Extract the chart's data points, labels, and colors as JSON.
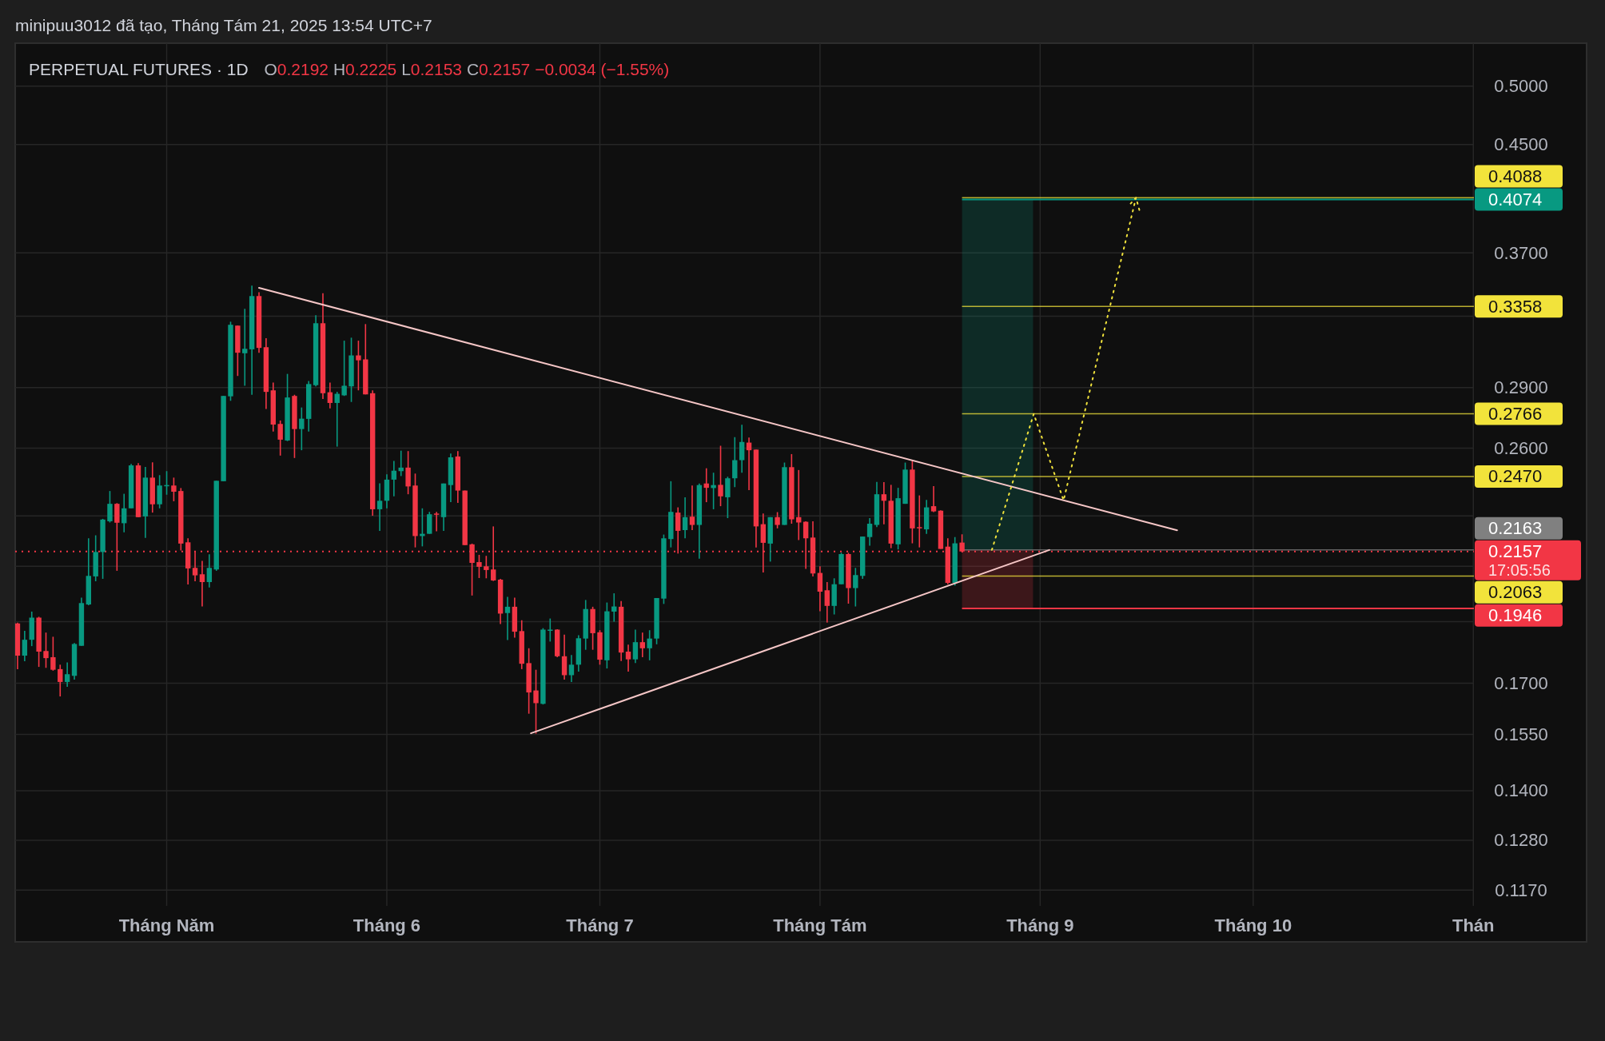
{
  "chart_data": {
    "type": "candlestick",
    "title": "PERPETUAL FUTURES · 1D",
    "subtitle": "O0.2192 H0.2225 L0.2153 C0.2157 −0.0034 (−1.55%)",
    "annotations": [
      "minipuu3012 đã tạo, Tháng Tám 21, 2025 13:54 UTC+7",
      "17:05:56"
    ],
    "log": "y",
    "grid": true,
    "xlim": [
      "2025-04-09T16:00",
      "2025-11-01T02:00"
    ],
    "xticks": [
      {
        "value": "2025-05-01",
        "label": "Tháng Năm"
      },
      {
        "value": "2025-06-01",
        "label": "Tháng 6"
      },
      {
        "value": "2025-07-01",
        "label": "Tháng 7"
      },
      {
        "value": "2025-08-01",
        "label": "Tháng Tám"
      },
      {
        "value": "2025-09-01",
        "label": "Tháng 9"
      },
      {
        "value": "2025-10-01",
        "label": "Tháng 10"
      },
      {
        "value": "2025-11-01",
        "label": "Thán"
      }
    ],
    "ylim": [
      0.1137,
      0.5404
    ],
    "yticks": [
      {
        "value": 0.5,
        "label": "0.5000"
      },
      {
        "value": 0.45,
        "label": "0.4500"
      },
      {
        "value": 0.37,
        "label": "0.3700"
      },
      {
        "value": 0.33,
        "label": null
      },
      {
        "value": 0.29,
        "label": "0.2900"
      },
      {
        "value": 0.26,
        "label": "0.2600"
      },
      {
        "value": 0.23,
        "label": null
      },
      {
        "value": 0.21,
        "label": null
      },
      {
        "value": 0.19,
        "label": null
      },
      {
        "value": 0.17,
        "label": "0.1700"
      },
      {
        "value": 0.155,
        "label": "0.1550"
      },
      {
        "value": 0.14,
        "label": "0.1400"
      },
      {
        "value": 0.128,
        "label": "0.1280"
      },
      {
        "value": 0.117,
        "label": "0.1170"
      }
    ],
    "x": [
      "2025-04-10",
      "2025-04-11",
      "2025-04-12",
      "2025-04-13",
      "2025-04-14",
      "2025-04-15",
      "2025-04-16",
      "2025-04-17",
      "2025-04-18",
      "2025-04-19",
      "2025-04-20",
      "2025-04-21",
      "2025-04-22",
      "2025-04-23",
      "2025-04-24",
      "2025-04-25",
      "2025-04-26",
      "2025-04-27",
      "2025-04-28",
      "2025-04-29",
      "2025-04-30",
      "2025-05-01",
      "2025-05-02",
      "2025-05-03",
      "2025-05-04",
      "2025-05-05",
      "2025-05-06",
      "2025-05-07",
      "2025-05-08",
      "2025-05-09",
      "2025-05-10",
      "2025-05-11",
      "2025-05-12",
      "2025-05-13",
      "2025-05-14",
      "2025-05-15",
      "2025-05-16",
      "2025-05-17",
      "2025-05-18",
      "2025-05-19",
      "2025-05-20",
      "2025-05-21",
      "2025-05-22",
      "2025-05-23",
      "2025-05-24",
      "2025-05-25",
      "2025-05-26",
      "2025-05-27",
      "2025-05-28",
      "2025-05-29",
      "2025-05-30",
      "2025-05-31",
      "2025-06-01",
      "2025-06-02",
      "2025-06-03",
      "2025-06-04",
      "2025-06-05",
      "2025-06-06",
      "2025-06-07",
      "2025-06-08",
      "2025-06-09",
      "2025-06-10",
      "2025-06-11",
      "2025-06-12",
      "2025-06-13",
      "2025-06-14",
      "2025-06-15",
      "2025-06-16",
      "2025-06-17",
      "2025-06-18",
      "2025-06-19",
      "2025-06-20",
      "2025-06-21",
      "2025-06-22",
      "2025-06-23",
      "2025-06-24",
      "2025-06-25",
      "2025-06-26",
      "2025-06-27",
      "2025-06-28",
      "2025-06-29",
      "2025-06-30",
      "2025-07-01",
      "2025-07-02",
      "2025-07-03",
      "2025-07-04",
      "2025-07-05",
      "2025-07-06",
      "2025-07-07",
      "2025-07-08",
      "2025-07-09",
      "2025-07-10",
      "2025-07-11",
      "2025-07-12",
      "2025-07-13",
      "2025-07-14",
      "2025-07-15",
      "2025-07-16",
      "2025-07-17",
      "2025-07-18",
      "2025-07-19",
      "2025-07-20",
      "2025-07-21",
      "2025-07-22",
      "2025-07-23",
      "2025-07-24",
      "2025-07-25",
      "2025-07-26",
      "2025-07-27",
      "2025-07-28",
      "2025-07-29",
      "2025-07-30",
      "2025-07-31",
      "2025-08-01",
      "2025-08-02",
      "2025-08-03",
      "2025-08-04",
      "2025-08-05",
      "2025-08-06",
      "2025-08-07",
      "2025-08-08",
      "2025-08-09",
      "2025-08-10",
      "2025-08-11",
      "2025-08-12",
      "2025-08-13",
      "2025-08-14",
      "2025-08-15",
      "2025-08-16",
      "2025-08-17",
      "2025-08-18",
      "2025-08-19",
      "2025-08-20",
      "2025-08-21"
    ],
    "ohlc": [
      [
        0.1894,
        0.1897,
        0.1744,
        0.1787
      ],
      [
        0.1787,
        0.1869,
        0.1769,
        0.1839
      ],
      [
        0.1839,
        0.1935,
        0.1818,
        0.1914
      ],
      [
        0.1914,
        0.1917,
        0.1751,
        0.18
      ],
      [
        0.1802,
        0.1863,
        0.1748,
        0.1779
      ],
      [
        0.1782,
        0.1849,
        0.1739,
        0.1742
      ],
      [
        0.1744,
        0.1758,
        0.166,
        0.1704
      ],
      [
        0.1704,
        0.1765,
        0.1689,
        0.1728
      ],
      [
        0.1723,
        0.1828,
        0.1711,
        0.1825
      ],
      [
        0.1819,
        0.1984,
        0.1819,
        0.1965
      ],
      [
        0.196,
        0.2209,
        0.1957,
        0.2064
      ],
      [
        0.2062,
        0.2221,
        0.2044,
        0.2155
      ],
      [
        0.2155,
        0.2288,
        0.2053,
        0.2285
      ],
      [
        0.2278,
        0.2406,
        0.2273,
        0.2351
      ],
      [
        0.2351,
        0.2354,
        0.2083,
        0.2272
      ],
      [
        0.227,
        0.2394,
        0.2233,
        0.2332
      ],
      [
        0.2332,
        0.2527,
        0.2332,
        0.252
      ],
      [
        0.252,
        0.253,
        0.2295,
        0.2295
      ],
      [
        0.2298,
        0.2513,
        0.2211,
        0.2465
      ],
      [
        0.2465,
        0.2534,
        0.2314,
        0.2349
      ],
      [
        0.2349,
        0.2476,
        0.2332,
        0.243
      ],
      [
        0.243,
        0.2494,
        0.239,
        0.2432
      ],
      [
        0.243,
        0.2465,
        0.2362,
        0.2403
      ],
      [
        0.2406,
        0.2419,
        0.2161,
        0.2188
      ],
      [
        0.2193,
        0.2209,
        0.2032,
        0.2092
      ],
      [
        0.2094,
        0.2158,
        0.2044,
        0.2066
      ],
      [
        0.207,
        0.2121,
        0.1953,
        0.2041
      ],
      [
        0.2041,
        0.2146,
        0.2021,
        0.2094
      ],
      [
        0.2088,
        0.2451,
        0.2083,
        0.2451
      ],
      [
        0.2449,
        0.2857,
        0.2449,
        0.2857
      ],
      [
        0.2855,
        0.3267,
        0.2832,
        0.3249
      ],
      [
        0.3244,
        0.3244,
        0.2962,
        0.3089
      ],
      [
        0.3086,
        0.3344,
        0.291,
        0.3111
      ],
      [
        0.3108,
        0.3487,
        0.2863,
        0.3422
      ],
      [
        0.3422,
        0.3446,
        0.3089,
        0.3116
      ],
      [
        0.312,
        0.3171,
        0.2791,
        0.2878
      ],
      [
        0.2886,
        0.2927,
        0.2679,
        0.2713
      ],
      [
        0.2716,
        0.2733,
        0.2565,
        0.264
      ],
      [
        0.2636,
        0.2973,
        0.2633,
        0.2849
      ],
      [
        0.2857,
        0.2863,
        0.2554,
        0.2691
      ],
      [
        0.2691,
        0.2798,
        0.259,
        0.2742
      ],
      [
        0.2741,
        0.2935,
        0.2679,
        0.2919
      ],
      [
        0.2913,
        0.3306,
        0.2907,
        0.3258
      ],
      [
        0.3258,
        0.344,
        0.2841,
        0.2871
      ],
      [
        0.2876,
        0.2927,
        0.2794,
        0.2821
      ],
      [
        0.2821,
        0.2878,
        0.2607,
        0.2868
      ],
      [
        0.286,
        0.3157,
        0.2857,
        0.291
      ],
      [
        0.2907,
        0.3174,
        0.2826,
        0.3074
      ],
      [
        0.3074,
        0.3157,
        0.2886,
        0.3047
      ],
      [
        0.3052,
        0.3253,
        0.2865,
        0.2865
      ],
      [
        0.2871,
        0.2886,
        0.2301,
        0.2328
      ],
      [
        0.2328,
        0.244,
        0.2239,
        0.2364
      ],
      [
        0.2364,
        0.248,
        0.2332,
        0.2456
      ],
      [
        0.2456,
        0.254,
        0.2383,
        0.2496
      ],
      [
        0.2494,
        0.2588,
        0.2472,
        0.251
      ],
      [
        0.251,
        0.2586,
        0.2392,
        0.2426
      ],
      [
        0.243,
        0.2483,
        0.2173,
        0.2218
      ],
      [
        0.2218,
        0.2332,
        0.2177,
        0.2227
      ],
      [
        0.2227,
        0.2317,
        0.2227,
        0.2307
      ],
      [
        0.231,
        0.2317,
        0.2237,
        0.2306
      ],
      [
        0.2295,
        0.2439,
        0.2239,
        0.2439
      ],
      [
        0.2432,
        0.2575,
        0.2358,
        0.2557
      ],
      [
        0.2561,
        0.2586,
        0.2355,
        0.2408
      ],
      [
        0.2408,
        0.2408,
        0.2182,
        0.2182
      ],
      [
        0.2185,
        0.2188,
        0.1992,
        0.2113
      ],
      [
        0.2116,
        0.2144,
        0.2056,
        0.2098
      ],
      [
        0.21,
        0.214,
        0.2055,
        0.2086
      ],
      [
        0.2088,
        0.2257,
        0.2045,
        0.2047
      ],
      [
        0.205,
        0.2053,
        0.1892,
        0.1928
      ],
      [
        0.193,
        0.1987,
        0.1838,
        0.1952
      ],
      [
        0.1952,
        0.1984,
        0.1846,
        0.1866
      ],
      [
        0.1868,
        0.1905,
        0.1744,
        0.1761
      ],
      [
        0.1763,
        0.1811,
        0.1609,
        0.1672
      ],
      [
        0.1678,
        0.1742,
        0.1552,
        0.164
      ],
      [
        0.1638,
        0.1878,
        0.1636,
        0.1873
      ],
      [
        0.1871,
        0.1911,
        0.1833,
        0.1873
      ],
      [
        0.1873,
        0.1874,
        0.1782,
        0.1785
      ],
      [
        0.1785,
        0.1856,
        0.1711,
        0.1725
      ],
      [
        0.1725,
        0.1789,
        0.1704,
        0.1758
      ],
      [
        0.1758,
        0.1854,
        0.1736,
        0.1844
      ],
      [
        0.1843,
        0.1976,
        0.1806,
        0.1944
      ],
      [
        0.1944,
        0.1952,
        0.1806,
        0.1861
      ],
      [
        0.1864,
        0.1871,
        0.1758,
        0.1774
      ],
      [
        0.1772,
        0.1967,
        0.1746,
        0.1936
      ],
      [
        0.1935,
        0.2,
        0.19,
        0.1953
      ],
      [
        0.1952,
        0.1972,
        0.177,
        0.1797
      ],
      [
        0.18,
        0.1823,
        0.1736,
        0.1775
      ],
      [
        0.1775,
        0.1873,
        0.1763,
        0.1831
      ],
      [
        0.1831,
        0.1863,
        0.1782,
        0.1811
      ],
      [
        0.1811,
        0.1871,
        0.1772,
        0.1843
      ],
      [
        0.1843,
        0.1983,
        0.1824,
        0.1983
      ],
      [
        0.1981,
        0.2224,
        0.1962,
        0.2209
      ],
      [
        0.2206,
        0.2449,
        0.2173,
        0.2317
      ],
      [
        0.2314,
        0.2336,
        0.2149,
        0.2239
      ],
      [
        0.2242,
        0.2379,
        0.2209,
        0.2295
      ],
      [
        0.2297,
        0.243,
        0.2242,
        0.2263
      ],
      [
        0.2263,
        0.2439,
        0.2129,
        0.2432
      ],
      [
        0.2439,
        0.2507,
        0.2358,
        0.242
      ],
      [
        0.2419,
        0.2487,
        0.2328,
        0.2432
      ],
      [
        0.2433,
        0.2611,
        0.2341,
        0.2383
      ],
      [
        0.2379,
        0.2469,
        0.2291,
        0.2462
      ],
      [
        0.2462,
        0.2652,
        0.2423,
        0.2544
      ],
      [
        0.2544,
        0.2712,
        0.2487,
        0.2629
      ],
      [
        0.2626,
        0.265,
        0.241,
        0.259
      ],
      [
        0.2593,
        0.2593,
        0.2173,
        0.2257
      ],
      [
        0.2266,
        0.231,
        0.2077,
        0.2191
      ],
      [
        0.2188,
        0.2295,
        0.2118,
        0.2295
      ],
      [
        0.2295,
        0.2316,
        0.2249,
        0.2263
      ],
      [
        0.2263,
        0.2533,
        0.2263,
        0.2512
      ],
      [
        0.2512,
        0.2572,
        0.2268,
        0.2286
      ],
      [
        0.2295,
        0.2499,
        0.2202,
        0.2273
      ],
      [
        0.2276,
        0.2278,
        0.209,
        0.2209
      ],
      [
        0.2212,
        0.2278,
        0.2062,
        0.2073
      ],
      [
        0.2075,
        0.21,
        0.1936,
        0.2006
      ],
      [
        0.2011,
        0.2041,
        0.1897,
        0.1955
      ],
      [
        0.1955,
        0.2055,
        0.1925,
        0.2033
      ],
      [
        0.2033,
        0.2152,
        0.2033,
        0.2147
      ],
      [
        0.2147,
        0.2152,
        0.1963,
        0.2019
      ],
      [
        0.2019,
        0.2094,
        0.1953,
        0.2067
      ],
      [
        0.2064,
        0.2216,
        0.2053,
        0.2216
      ],
      [
        0.2214,
        0.2291,
        0.218,
        0.2268
      ],
      [
        0.2263,
        0.2446,
        0.2254,
        0.2392
      ],
      [
        0.2392,
        0.2445,
        0.2266,
        0.2364
      ],
      [
        0.2364,
        0.2433,
        0.217,
        0.2188
      ],
      [
        0.2185,
        0.242,
        0.2165,
        0.2375
      ],
      [
        0.2351,
        0.2533,
        0.2351,
        0.2501
      ],
      [
        0.2501,
        0.2544,
        0.2189,
        0.2249
      ],
      [
        0.2254,
        0.2387,
        0.2173,
        0.2251
      ],
      [
        0.2245,
        0.2368,
        0.2227,
        0.2336
      ],
      [
        0.2341,
        0.2427,
        0.2316,
        0.2319
      ],
      [
        0.2322,
        0.2324,
        0.2167,
        0.2167
      ],
      [
        0.2176,
        0.2209,
        0.2033,
        0.2038
      ],
      [
        0.2038,
        0.2214,
        0.2028,
        0.2189
      ],
      [
        0.2192,
        0.2225,
        0.2153,
        0.2157
      ]
    ],
    "colors": [
      "#f23645",
      "#089981",
      "#089981",
      "#f23645",
      "#f23645",
      "#f23645",
      "#f23645",
      "#089981",
      "#089981",
      "#089981",
      "#089981",
      "#089981",
      "#089981",
      "#089981",
      "#f23645",
      "#089981",
      "#089981",
      "#f23645",
      "#089981",
      "#f23645",
      "#089981",
      "#089981",
      "#f23645",
      "#f23645",
      "#f23645",
      "#f23645",
      "#f23645",
      "#089981",
      "#089981",
      "#089981",
      "#089981",
      "#f23645",
      "#089981",
      "#089981",
      "#f23645",
      "#f23645",
      "#f23645",
      "#f23645",
      "#089981",
      "#f23645",
      "#089981",
      "#089981",
      "#089981",
      "#f23645",
      "#f23645",
      "#089981",
      "#089981",
      "#089981",
      "#f23645",
      "#f23645",
      "#f23645",
      "#089981",
      "#089981",
      "#089981",
      "#089981",
      "#f23645",
      "#f23645",
      "#089981",
      "#089981",
      "#f23645",
      "#089981",
      "#089981",
      "#f23645",
      "#f23645",
      "#f23645",
      "#f23645",
      "#f23645",
      "#f23645",
      "#f23645",
      "#089981",
      "#f23645",
      "#f23645",
      "#f23645",
      "#f23645",
      "#089981",
      "#089981",
      "#f23645",
      "#f23645",
      "#089981",
      "#089981",
      "#089981",
      "#f23645",
      "#f23645",
      "#089981",
      "#089981",
      "#f23645",
      "#f23645",
      "#089981",
      "#f23645",
      "#089981",
      "#089981",
      "#089981",
      "#089981",
      "#f23645",
      "#089981",
      "#f23645",
      "#089981",
      "#f23645",
      "#089981",
      "#f23645",
      "#089981",
      "#089981",
      "#089981",
      "#f23645",
      "#f23645",
      "#f23645",
      "#089981",
      "#f23645",
      "#089981",
      "#f23645",
      "#f23645",
      "#f23645",
      "#f23645",
      "#f23645",
      "#f23645",
      "#089981",
      "#089981",
      "#f23645",
      "#089981",
      "#089981",
      "#089981",
      "#089981",
      "#f23645",
      "#f23645",
      "#089981",
      "#089981",
      "#f23645",
      "#f23645",
      "#089981",
      "#f23645",
      "#f23645",
      "#f23645",
      "#089981",
      "#f23645"
    ],
    "series": [
      {
        "type": "line",
        "color": "#f5c6c6",
        "line_style": "solid",
        "x": [
          "2025-05-14",
          "2025-09-20T07:00"
        ],
        "values": [
          0.3473,
          0.2241
        ]
      },
      {
        "type": "line",
        "color": "#f5c6c6",
        "line_style": "solid",
        "x": [
          "2025-06-21T07:00",
          "2025-09-02T07:00"
        ],
        "values": [
          0.1553,
          0.2163
        ]
      }
    ],
    "ref_lines": [
      {
        "axis": "y",
        "value": 0.4088,
        "label": "0.4088",
        "color": "#f2e33b"
      },
      {
        "axis": "y",
        "value": 0.3358,
        "label": "0.3358",
        "color": "#f2e33b"
      },
      {
        "axis": "y",
        "value": 0.2766,
        "label": "0.2766",
        "color": "#f2e33b"
      },
      {
        "axis": "y",
        "value": 0.247,
        "label": "0.2470",
        "color": "#f2e33b"
      },
      {
        "axis": "y",
        "value": 0.2063,
        "label": "0.2063",
        "color": "#f2e33b"
      },
      {
        "axis": "y",
        "value": 0.2163,
        "label": "0.2163",
        "color": "#808080"
      },
      {
        "axis": "y",
        "value": 0.2157,
        "label": "0.2157",
        "color": "#f23645",
        "line_style": "dotted"
      }
    ],
    "bands": [
      {
        "axis": "y",
        "from": 0.2163,
        "to": 0.4074,
        "label": "0.4074",
        "color": "#089981"
      },
      {
        "axis": "y",
        "from": 0.1946,
        "to": 0.2163,
        "label": "0.1946",
        "color": "#f23645"
      }
    ]
  }
}
